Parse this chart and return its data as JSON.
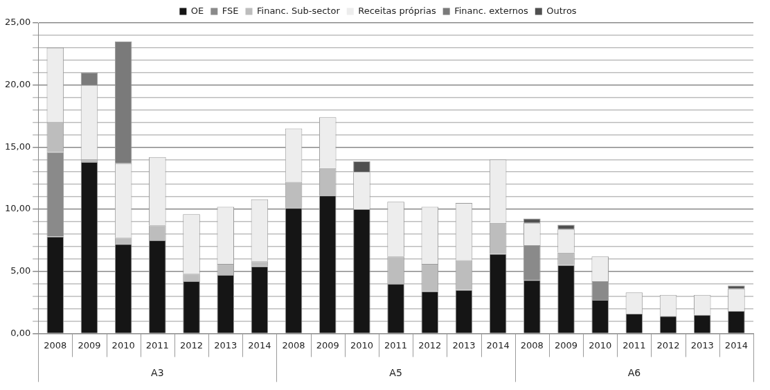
{
  "chart_data": {
    "type": "bar",
    "stacked": true,
    "legend": "top",
    "grid": "y",
    "categories": [
      "2008",
      "2009",
      "2010",
      "2011",
      "2012",
      "2013",
      "2014",
      "2008",
      "2009",
      "2010",
      "2011",
      "2012",
      "2013",
      "2014",
      "2008",
      "2009",
      "2010",
      "2011",
      "2012",
      "2013",
      "2014"
    ],
    "annotations": [
      "A3",
      "A5",
      "A6"
    ],
    "ylim": [
      0,
      25
    ],
    "yticks": [
      {
        "value": 0,
        "label": "0,00"
      },
      {
        "value": 1,
        "label": null
      },
      {
        "value": 2,
        "label": null
      },
      {
        "value": 3,
        "label": null
      },
      {
        "value": 4,
        "label": null
      },
      {
        "value": 5,
        "label": "5,00"
      },
      {
        "value": 6,
        "label": null
      },
      {
        "value": 7,
        "label": null
      },
      {
        "value": 8,
        "label": null
      },
      {
        "value": 9,
        "label": null
      },
      {
        "value": 10,
        "label": "10,00"
      },
      {
        "value": 11,
        "label": null
      },
      {
        "value": 12,
        "label": null
      },
      {
        "value": 13,
        "label": null
      },
      {
        "value": 14,
        "label": null
      },
      {
        "value": 15,
        "label": "15,00"
      },
      {
        "value": 16,
        "label": null
      },
      {
        "value": 17,
        "label": null
      },
      {
        "value": 18,
        "label": null
      },
      {
        "value": 19,
        "label": null
      },
      {
        "value": 20,
        "label": "20,00"
      },
      {
        "value": 21,
        "label": null
      },
      {
        "value": 22,
        "label": null
      },
      {
        "value": 23,
        "label": null
      },
      {
        "value": 24,
        "label": null
      },
      {
        "value": 25,
        "label": "25,00"
      }
    ],
    "series": [
      {
        "name": "OE",
        "color": "#151515",
        "values": [
          7.8,
          13.8,
          7.2,
          7.5,
          4.2,
          4.7,
          5.4,
          10.1,
          11.1,
          10.0,
          4.0,
          3.4,
          3.5,
          6.4,
          4.3,
          5.5,
          2.7,
          1.6,
          1.4,
          1.5,
          1.8
        ]
      },
      {
        "name": "FSE",
        "color": "#8a8a8a",
        "values": [
          6.8,
          null,
          null,
          null,
          null,
          null,
          null,
          null,
          null,
          null,
          null,
          null,
          null,
          null,
          2.8,
          null,
          1.5,
          null,
          null,
          null,
          null
        ]
      },
      {
        "name": "Financ. Sub-sector",
        "color": "#bdbdbd",
        "values": [
          2.4,
          0.2,
          0.5,
          1.2,
          0.6,
          0.9,
          0.4,
          2.1,
          2.2,
          null,
          2.2,
          2.2,
          2.4,
          2.5,
          null,
          1.0,
          null,
          null,
          null,
          null,
          null
        ]
      },
      {
        "name": "Receitas próprias",
        "color": "#ededed",
        "values": [
          6.0,
          6.0,
          6.0,
          5.5,
          4.8,
          4.6,
          5.0,
          4.3,
          4.1,
          3.0,
          4.4,
          4.6,
          4.6,
          5.1,
          1.8,
          1.9,
          2.0,
          1.7,
          1.7,
          1.6,
          1.8
        ]
      },
      {
        "name": "Financ. externos",
        "color": "#7a7a7a",
        "values": [
          null,
          1.0,
          9.8,
          null,
          null,
          null,
          null,
          null,
          null,
          null,
          null,
          null,
          null,
          null,
          null,
          null,
          null,
          null,
          null,
          null,
          null
        ]
      },
      {
        "name": "Outros",
        "color": "#505050",
        "values": [
          null,
          null,
          null,
          null,
          null,
          null,
          null,
          null,
          null,
          0.85,
          null,
          null,
          null,
          null,
          0.35,
          0.35,
          null,
          null,
          null,
          null,
          0.25
        ]
      }
    ]
  }
}
